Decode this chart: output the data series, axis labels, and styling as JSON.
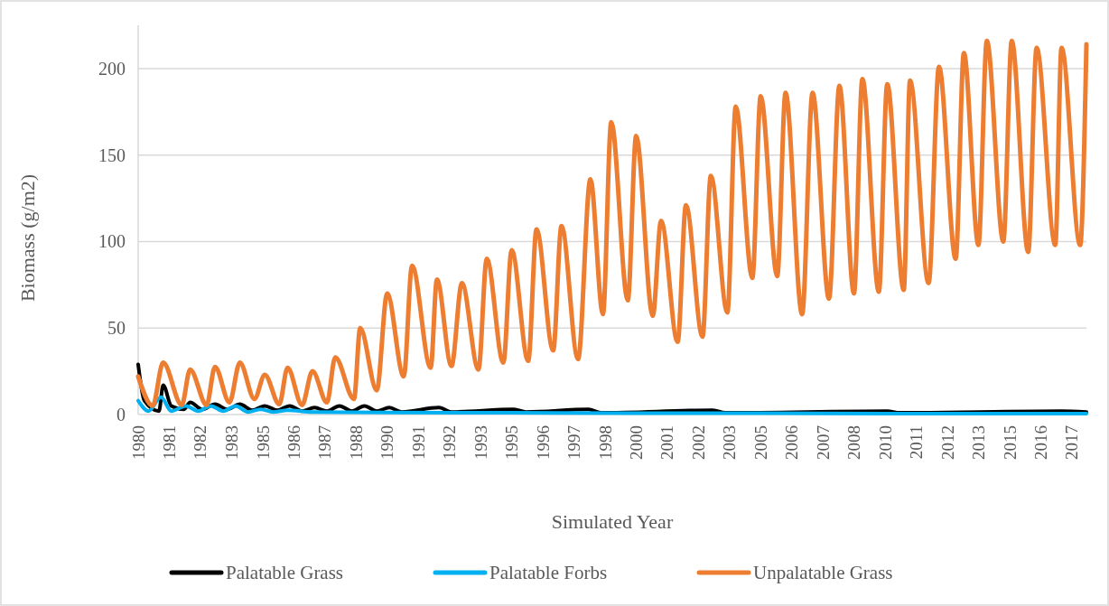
{
  "chart_data": {
    "type": "line",
    "xlabel": "Simulated Year",
    "ylabel": "Biomass (g/m2)",
    "xlim": [
      "1980-01",
      "2018-02"
    ],
    "ylim": [
      0,
      225
    ],
    "yticks": [
      0,
      50,
      100,
      150,
      200
    ],
    "xticks": [
      {
        "value": "1980-01",
        "label": "1980"
      },
      {
        "value": "1981-04",
        "label": "1981"
      },
      {
        "value": "1982-07",
        "label": "1982"
      },
      {
        "value": "1983-10",
        "label": "1983"
      },
      {
        "value": "1985-01",
        "label": "1985"
      },
      {
        "value": "1986-04",
        "label": "1986"
      },
      {
        "value": "1987-07",
        "label": "1987"
      },
      {
        "value": "1988-10",
        "label": "1988"
      },
      {
        "value": "1990-01",
        "label": "1990"
      },
      {
        "value": "1991-04",
        "label": "1991"
      },
      {
        "value": "1992-07",
        "label": "1992"
      },
      {
        "value": "1993-10",
        "label": "1993"
      },
      {
        "value": "1995-01",
        "label": "1995"
      },
      {
        "value": "1996-04",
        "label": "1996"
      },
      {
        "value": "1997-07",
        "label": "1997"
      },
      {
        "value": "1998-10",
        "label": "1998"
      },
      {
        "value": "2000-01",
        "label": "2000"
      },
      {
        "value": "2001-04",
        "label": "2001"
      },
      {
        "value": "2002-07",
        "label": "2002"
      },
      {
        "value": "2003-10",
        "label": "2003"
      },
      {
        "value": "2005-01",
        "label": "2005"
      },
      {
        "value": "2006-04",
        "label": "2006"
      },
      {
        "value": "2007-07",
        "label": "2007"
      },
      {
        "value": "2008-10",
        "label": "2008"
      },
      {
        "value": "2010-01",
        "label": "2010"
      },
      {
        "value": "2011-04",
        "label": "2011"
      },
      {
        "value": "2012-07",
        "label": "2012"
      },
      {
        "value": "2013-10",
        "label": "2013"
      },
      {
        "value": "2015-01",
        "label": "2015"
      },
      {
        "value": "2016-04",
        "label": "2016"
      },
      {
        "value": "2017-07",
        "label": "2017"
      }
    ],
    "grid": "y",
    "legend": "bottom",
    "line_style": "solid",
    "marker": "none",
    "series": [
      {
        "name": "Palatable Grass",
        "color": "#000000",
        "x": [
          "1980-01",
          "1980-04",
          "1980-11",
          "1981-01",
          "1981-05",
          "1981-11",
          "1982-02",
          "1982-08",
          "1983-02",
          "1983-08",
          "1984-02",
          "1984-08",
          "1985-02",
          "1985-08",
          "1986-02",
          "1986-08",
          "1987-02",
          "1987-08",
          "1988-02",
          "1988-08",
          "1989-02",
          "1989-08",
          "1990-02",
          "1990-08",
          "1992-02",
          "1992-08",
          "1995-02",
          "1995-08",
          "1998-02",
          "1998-08",
          "2003-02",
          "2003-08",
          "2010-02",
          "2010-08",
          "2017-02",
          "2018-02"
        ],
        "values": [
          29,
          8,
          2,
          17,
          5,
          3,
          7,
          3,
          6,
          3,
          6,
          2.5,
          5,
          2.5,
          5,
          2,
          4,
          2,
          5,
          2,
          5,
          2,
          4,
          1.5,
          4,
          1.5,
          3,
          1.5,
          3,
          1,
          2.5,
          1,
          2,
          1,
          2,
          1.5
        ]
      },
      {
        "name": "Palatable Forbs",
        "color": "#00b0f0",
        "x": [
          "1980-01",
          "1980-06",
          "1980-12",
          "1981-05",
          "1981-12",
          "1982-06",
          "1982-12",
          "1983-06",
          "1983-12",
          "1984-06",
          "1984-12",
          "1985-06",
          "1986-01",
          "1987-01",
          "1990-01",
          "1995-01",
          "2000-01",
          "2005-01",
          "2010-01",
          "2018-02"
        ],
        "values": [
          8,
          2,
          10,
          2,
          5,
          2,
          5,
          2,
          5,
          1.5,
          3,
          1.5,
          2.5,
          1.5,
          1.2,
          1,
          0.8,
          0.8,
          0.5,
          0.5
        ]
      },
      {
        "name": "Unpalatable Grass",
        "color": "#ed7d31",
        "x": [
          "1980-01",
          "1980-08",
          "1981-01",
          "1981-10",
          "1982-02",
          "1982-10",
          "1983-02",
          "1983-09",
          "1984-02",
          "1984-09",
          "1985-02",
          "1985-09",
          "1986-01",
          "1986-08",
          "1987-01",
          "1987-08",
          "1987-12",
          "1988-09",
          "1988-12",
          "1989-08",
          "1990-01",
          "1990-09",
          "1991-01",
          "1991-10",
          "1992-01",
          "1992-08",
          "1993-01",
          "1993-09",
          "1994-01",
          "1994-09",
          "1995-01",
          "1995-09",
          "1996-01",
          "1996-09",
          "1997-01",
          "1997-09",
          "1998-03",
          "1998-09",
          "1999-01",
          "1999-09",
          "2000-01",
          "2000-09",
          "2001-01",
          "2001-09",
          "2002-01",
          "2002-09",
          "2003-01",
          "2003-09",
          "2004-01",
          "2004-09",
          "2005-01",
          "2005-09",
          "2006-01",
          "2006-09",
          "2007-02",
          "2007-10",
          "2008-03",
          "2008-10",
          "2009-02",
          "2009-10",
          "2010-02",
          "2010-10",
          "2011-01",
          "2011-10",
          "2012-03",
          "2012-11",
          "2013-03",
          "2013-10",
          "2014-02",
          "2014-10",
          "2015-02",
          "2015-10",
          "2016-02",
          "2016-11",
          "2017-02",
          "2017-11",
          "2018-02"
        ],
        "values": [
          22,
          5,
          30,
          5.5,
          26,
          5.5,
          27.5,
          7,
          30,
          9,
          23,
          6,
          27,
          5.5,
          25,
          7,
          33,
          9,
          50,
          14,
          70,
          22,
          86,
          27,
          78,
          28,
          76,
          26,
          90,
          30,
          95,
          31,
          107,
          37,
          109,
          32,
          136,
          58,
          169,
          66,
          161,
          57,
          112,
          42,
          121,
          45,
          138,
          59,
          178,
          79,
          184,
          80,
          186,
          58,
          186,
          67,
          190,
          70,
          194,
          71,
          191,
          72,
          193,
          76,
          201,
          90,
          209,
          98,
          216,
          100,
          216,
          94,
          212,
          98,
          212,
          98,
          214
        ]
      }
    ]
  }
}
